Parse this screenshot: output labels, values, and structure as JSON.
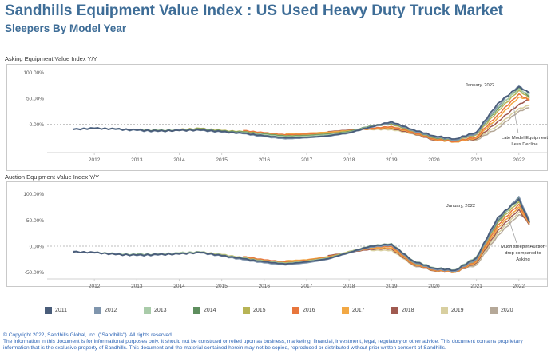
{
  "header": {
    "title": "Sandhills Equipment Value Index : US Used Heavy Duty Truck Market",
    "subtitle": "Sleepers By Model Year"
  },
  "footer": {
    "line1": "© Copyright 2022, Sandhills Global, Inc. (\"Sandhills\"). All rights reserved.",
    "line2": "The information in this document is for informational purposes only.  It should not be construed or relied upon as business, marketing, financial, investment, legal, regulatory or other advice. This document contains proprietary",
    "line3": "information that is the exclusive property of Sandhills. This document and the material contained herein may not be copied, reproduced or distributed without prior written consent of Sandhills."
  },
  "colors": {
    "title": "#3e6d97",
    "footer": "#2b63b5",
    "series": {
      "2011": "#4a5d7a",
      "2012": "#7f95ad",
      "2013": "#a9cba9",
      "2014": "#5e8e5e",
      "2015": "#b7b455",
      "2016": "#e8763c",
      "2017": "#f2a844",
      "2018": "#a05a50",
      "2019": "#d8cfa0",
      "2020": "#b5a898"
    }
  },
  "chart_data": [
    {
      "type": "line",
      "title": "Asking Equipment Value Index Y/Y",
      "xlabel": "",
      "ylabel": "",
      "x_ticks": [
        "2012",
        "2013",
        "2014",
        "2015",
        "2016",
        "2017",
        "2018",
        "2019",
        "2020",
        "2021",
        "2022"
      ],
      "y_ticks": [
        "100.00%",
        "50.00%",
        "0.00%"
      ],
      "ylim": [
        -45,
        105
      ],
      "grid": false,
      "annotations": [
        {
          "text": "January, 2022"
        },
        {
          "text": "Late Model Equipment Less Decline"
        }
      ],
      "series": [
        {
          "name": "2011",
          "x": [
            2011.5,
            2012,
            2012.5,
            2013,
            2013.5,
            2014,
            2014.5,
            2015,
            2015.5,
            2016,
            2016.5,
            2017,
            2017.5,
            2018,
            2018.5,
            2019,
            2019.5,
            2020,
            2020.5,
            2021,
            2021.5,
            2022,
            2022.25
          ],
          "values": [
            -10,
            -8,
            -9,
            -11,
            -13,
            -12,
            -11,
            -14,
            -17,
            -22,
            -26,
            -25,
            -22,
            -16,
            -5,
            5,
            -10,
            -22,
            -28,
            -15,
            40,
            72,
            60
          ]
        },
        {
          "name": "2012",
          "x": [
            2011.5,
            2012,
            2012.5,
            2013,
            2013.5,
            2014,
            2014.5,
            2015,
            2015.5,
            2016,
            2016.5,
            2017,
            2017.5,
            2018,
            2018.5,
            2019,
            2019.5,
            2020,
            2020.5,
            2021,
            2021.5,
            2022,
            2022.25
          ],
          "values": [
            -9,
            -7,
            -10,
            -12,
            -14,
            -11,
            -12,
            -15,
            -18,
            -24,
            -28,
            -26,
            -23,
            -17,
            -6,
            3,
            -12,
            -24,
            -30,
            -18,
            35,
            75,
            58
          ]
        },
        {
          "name": "2013",
          "x": [
            2012,
            2012.5,
            2013,
            2013.5,
            2014,
            2014.5,
            2015,
            2015.5,
            2016,
            2016.5,
            2017,
            2017.5,
            2018,
            2018.5,
            2019,
            2019.5,
            2020,
            2020.5,
            2021,
            2021.5,
            2022,
            2022.25
          ],
          "values": [
            -8,
            -9,
            -11,
            -13,
            -12,
            -10,
            -14,
            -16,
            -20,
            -24,
            -23,
            -20,
            -15,
            -4,
            4,
            -11,
            -23,
            -29,
            -16,
            32,
            68,
            55
          ]
        },
        {
          "name": "2014",
          "x": [
            2013,
            2013.5,
            2014,
            2014.5,
            2015,
            2015.5,
            2016,
            2016.5,
            2017,
            2017.5,
            2018,
            2018.5,
            2019,
            2019.5,
            2020,
            2020.5,
            2021,
            2021.5,
            2022,
            2022.25
          ],
          "values": [
            -10,
            -12,
            -11,
            -9,
            -13,
            -15,
            -19,
            -23,
            -22,
            -19,
            -14,
            -3,
            2,
            -12,
            -25,
            -30,
            -17,
            30,
            70,
            52
          ]
        },
        {
          "name": "2015",
          "x": [
            2014,
            2014.5,
            2015,
            2015.5,
            2016,
            2016.5,
            2017,
            2017.5,
            2018,
            2018.5,
            2019,
            2019.5,
            2020,
            2020.5,
            2021,
            2021.5,
            2022,
            2022.25
          ],
          "values": [
            -10,
            -8,
            -12,
            -14,
            -18,
            -22,
            -21,
            -18,
            -13,
            -4,
            0,
            -13,
            -26,
            -31,
            -20,
            25,
            65,
            50
          ]
        },
        {
          "name": "2016",
          "x": [
            2015.5,
            2016,
            2016.5,
            2017,
            2017.5,
            2018,
            2018.5,
            2019,
            2019.5,
            2020,
            2020.5,
            2021,
            2021.5,
            2022,
            2022.25
          ],
          "values": [
            -12,
            -16,
            -20,
            -19,
            -17,
            -14,
            -8,
            -4,
            -15,
            -28,
            -33,
            -24,
            18,
            58,
            45
          ]
        },
        {
          "name": "2017",
          "x": [
            2016.5,
            2017,
            2017.5,
            2018,
            2018.5,
            2019,
            2019.5,
            2020,
            2020.5,
            2021,
            2021.5,
            2022,
            2022.25
          ],
          "values": [
            -18,
            -17,
            -15,
            -12,
            -9,
            -6,
            -16,
            -29,
            -34,
            -26,
            12,
            52,
            48
          ]
        },
        {
          "name": "2018",
          "x": [
            2017.5,
            2018,
            2018.5,
            2019,
            2019.5,
            2020,
            2020.5,
            2021,
            2021.5,
            2022,
            2022.25
          ],
          "values": [
            -14,
            -11,
            -9,
            -8,
            -17,
            -30,
            -33,
            -28,
            5,
            38,
            48
          ]
        },
        {
          "name": "2019",
          "x": [
            2018.5,
            2019,
            2019.5,
            2020,
            2020.5,
            2021,
            2021.5,
            2022,
            2022.25
          ],
          "values": [
            -10,
            -10,
            -18,
            -30,
            -32,
            -29,
            -2,
            30,
            36
          ]
        },
        {
          "name": "2020",
          "x": [
            2019.5,
            2020,
            2020.5,
            2021,
            2021.5,
            2022,
            2022.25
          ],
          "values": [
            -18,
            -30,
            -31,
            -30,
            -8,
            25,
            32
          ]
        }
      ]
    },
    {
      "type": "line",
      "title": "Auction Equipment Value Index Y/Y",
      "xlabel": "",
      "ylabel": "",
      "x_ticks": [
        "2012",
        "2013",
        "2014",
        "2015",
        "2016",
        "2017",
        "2018",
        "2019",
        "2020",
        "2021",
        "2022"
      ],
      "y_ticks": [
        "100.00%",
        "50.00%",
        "0.00%",
        "-50.00%"
      ],
      "ylim": [
        -55,
        110
      ],
      "grid": false,
      "annotations": [
        {
          "text": "January, 2022"
        },
        {
          "text": "Much steeper Auction drop compared to Asking"
        }
      ],
      "series": [
        {
          "name": "2011",
          "x": [
            2011.5,
            2012,
            2012.5,
            2013,
            2013.5,
            2014,
            2014.5,
            2015,
            2015.5,
            2016,
            2016.5,
            2017,
            2017.5,
            2018,
            2018.5,
            2019,
            2019.5,
            2020,
            2020.5,
            2021,
            2021.5,
            2022,
            2022.25
          ],
          "values": [
            -11,
            -12,
            -16,
            -17,
            -16,
            -15,
            -12,
            -18,
            -24,
            -30,
            -34,
            -30,
            -24,
            -12,
            0,
            4,
            -28,
            -42,
            -46,
            -22,
            55,
            90,
            45
          ]
        },
        {
          "name": "2012",
          "x": [
            2011.5,
            2012,
            2012.5,
            2013,
            2013.5,
            2014,
            2014.5,
            2015,
            2015.5,
            2016,
            2016.5,
            2017,
            2017.5,
            2018,
            2018.5,
            2019,
            2019.5,
            2020,
            2020.5,
            2021,
            2021.5,
            2022,
            2022.25
          ],
          "values": [
            -10,
            -13,
            -15,
            -18,
            -17,
            -14,
            -13,
            -19,
            -26,
            -32,
            -36,
            -32,
            -25,
            -13,
            -2,
            2,
            -30,
            -44,
            -48,
            -25,
            50,
            95,
            48
          ]
        },
        {
          "name": "2013",
          "x": [
            2012,
            2012.5,
            2013,
            2013.5,
            2014,
            2014.5,
            2015,
            2015.5,
            2016,
            2016.5,
            2017,
            2017.5,
            2018,
            2018.5,
            2019,
            2019.5,
            2020,
            2020.5,
            2021,
            2021.5,
            2022,
            2022.25
          ],
          "values": [
            -12,
            -14,
            -16,
            -15,
            -13,
            -11,
            -17,
            -23,
            -29,
            -33,
            -29,
            -23,
            -11,
            1,
            5,
            -27,
            -41,
            -45,
            -20,
            52,
            88,
            50
          ]
        },
        {
          "name": "2014",
          "x": [
            2013,
            2013.5,
            2014,
            2014.5,
            2015,
            2015.5,
            2016,
            2016.5,
            2017,
            2017.5,
            2018,
            2018.5,
            2019,
            2019.5,
            2020,
            2020.5,
            2021,
            2021.5,
            2022,
            2022.25
          ],
          "values": [
            -15,
            -16,
            -14,
            -12,
            -18,
            -24,
            -30,
            -34,
            -30,
            -24,
            -12,
            -1,
            3,
            -29,
            -43,
            -47,
            -23,
            48,
            92,
            46
          ]
        },
        {
          "name": "2015",
          "x": [
            2014,
            2014.5,
            2015,
            2015.5,
            2016,
            2016.5,
            2017,
            2017.5,
            2018,
            2018.5,
            2019,
            2019.5,
            2020,
            2020.5,
            2021,
            2021.5,
            2022,
            2022.25
          ],
          "values": [
            -13,
            -11,
            -16,
            -22,
            -28,
            -32,
            -28,
            -22,
            -10,
            0,
            2,
            -31,
            -44,
            -48,
            -26,
            45,
            85,
            47
          ]
        },
        {
          "name": "2016",
          "x": [
            2015.5,
            2016,
            2016.5,
            2017,
            2017.5,
            2018,
            2018.5,
            2019,
            2019.5,
            2020,
            2020.5,
            2021,
            2021.5,
            2022,
            2022.25
          ],
          "values": [
            -20,
            -26,
            -30,
            -27,
            -21,
            -11,
            -2,
            0,
            -33,
            -45,
            -49,
            -28,
            40,
            80,
            44
          ]
        },
        {
          "name": "2017",
          "x": [
            2016.5,
            2017,
            2017.5,
            2018,
            2018.5,
            2019,
            2019.5,
            2020,
            2020.5,
            2021,
            2021.5,
            2022,
            2022.25
          ],
          "values": [
            -28,
            -26,
            -20,
            -12,
            -4,
            -3,
            -34,
            -46,
            -50,
            -30,
            35,
            75,
            42
          ]
        },
        {
          "name": "2018",
          "x": [
            2017.5,
            2018,
            2018.5,
            2019,
            2019.5,
            2020,
            2020.5,
            2021,
            2021.5,
            2022,
            2022.25
          ],
          "values": [
            -18,
            -12,
            -6,
            -5,
            -35,
            -47,
            -50,
            -32,
            30,
            70,
            40
          ]
        },
        {
          "name": "2019",
          "x": [
            2018.5,
            2019,
            2019.5,
            2020,
            2020.5,
            2021,
            2021.5,
            2022,
            2022.25
          ],
          "values": [
            -8,
            -8,
            -36,
            -47,
            -49,
            -34,
            25,
            65,
            55
          ]
        },
        {
          "name": "2020",
          "x": [
            2019.5,
            2020,
            2020.5,
            2021,
            2021.5,
            2022,
            2022.25
          ],
          "values": [
            -37,
            -46,
            -48,
            -36,
            20,
            60,
            52
          ]
        }
      ]
    }
  ]
}
